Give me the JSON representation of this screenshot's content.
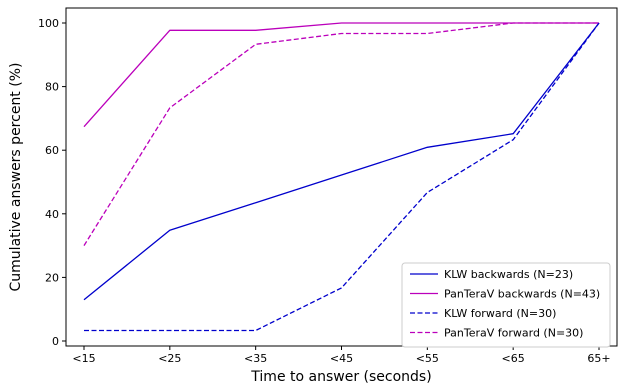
{
  "chart_data": {
    "type": "line",
    "categories": [
      "<15",
      "<25",
      "<35",
      "<45",
      "<55",
      "<65",
      "65+"
    ],
    "xlabel": "Time to answer (seconds)",
    "ylabel": "Cumulative answers percent (%)",
    "ylim": [
      0,
      105
    ],
    "yticks": [
      0,
      20,
      40,
      60,
      80,
      100
    ],
    "grid": false,
    "legend_position": "bottom-right",
    "series": [
      {
        "name": "KLW backwards (N=23)",
        "color": "#0000cc",
        "dash": "solid",
        "values": [
          13.0,
          34.8,
          43.5,
          52.2,
          60.9,
          65.2,
          100
        ]
      },
      {
        "name": "PanTeraV backwards (N=43)",
        "color": "#bb00bb",
        "dash": "solid",
        "values": [
          67.4,
          97.7,
          97.7,
          100,
          100,
          100,
          100
        ]
      },
      {
        "name": "KLW forward (N=30)",
        "color": "#0000cc",
        "dash": "dashed",
        "values": [
          3.3,
          3.3,
          3.3,
          16.7,
          46.7,
          63.3,
          100
        ]
      },
      {
        "name": "PanTeraV forward (N=30)",
        "color": "#bb00bb",
        "dash": "dashed",
        "values": [
          30.0,
          73.3,
          93.3,
          96.7,
          96.7,
          100,
          100
        ]
      }
    ]
  }
}
